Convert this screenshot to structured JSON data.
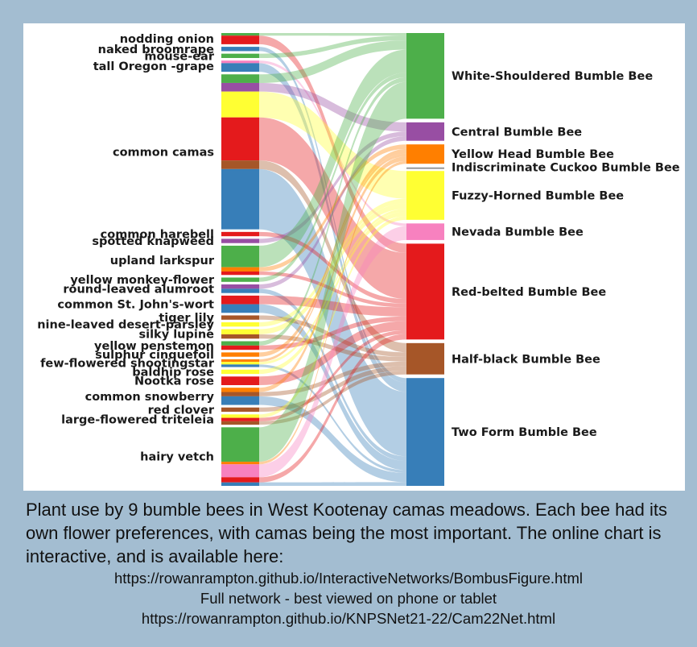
{
  "chart_data": {
    "type": "sankey",
    "title": "",
    "plants": [
      "nodding onion",
      "naked broomrape",
      "mouse-ear",
      "tall Oregon -grape",
      "common camas",
      "common harebell",
      "spotted knapweed",
      "upland larkspur",
      "yellow monkey-flower",
      "round-leaved alumroot",
      "common St. John's-wort",
      "tiger lily",
      "nine-leaved desert-parsley",
      "silky lupine",
      "yellow penstemon",
      "sulphur cinquefoil",
      "few-flowered shootingstar",
      "baldhip rose",
      "Nootka rose",
      "common snowberry",
      "red clover",
      "large-flowered triteleia",
      "hairy vetch"
    ],
    "bees": [
      {
        "name": "White-Shouldered Bumble Bee",
        "color": "#4daf4a"
      },
      {
        "name": "Central Bumble Bee",
        "color": "#984ea3"
      },
      {
        "name": "Yellow Head Bumble Bee",
        "color": "#ff7f00"
      },
      {
        "name": "Indiscriminate Cuckoo Bumble Bee",
        "color": "#999999"
      },
      {
        "name": "Fuzzy-Horned Bumble Bee",
        "color": "#ffff33"
      },
      {
        "name": "Nevada Bumble Bee",
        "color": "#f781bf"
      },
      {
        "name": "Red-belted Bumble Bee",
        "color": "#e41a1c"
      },
      {
        "name": "Half-black Bumble Bee",
        "color": "#a65628"
      },
      {
        "name": "Two Form Bumble Bee",
        "color": "#377eb8"
      }
    ],
    "links": [
      [
        "nodding onion",
        "Red-belted Bumble Bee",
        1
      ],
      [
        "nodding onion",
        "White-Shouldered Bumble Bee",
        0.3
      ],
      [
        "naked broomrape",
        "Two Form Bumble Bee",
        0.5
      ],
      [
        "mouse-ear",
        "White-Shouldered Bumble Bee",
        0.5
      ],
      [
        "tall Oregon -grape",
        "Two Form Bumble Bee",
        1
      ],
      [
        "tall Oregon -grape",
        "Nevada Bumble Bee",
        0.3
      ],
      [
        "common camas",
        "Central Bumble Bee",
        1
      ],
      [
        "common camas",
        "Fuzzy-Horned Bumble Bee",
        3
      ],
      [
        "common camas",
        "Red-belted Bumble Bee",
        5
      ],
      [
        "common camas",
        "Half-black Bumble Bee",
        1
      ],
      [
        "common camas",
        "Two Form Bumble Bee",
        7
      ],
      [
        "common camas",
        "White-Shouldered Bumble Bee",
        1
      ],
      [
        "common harebell",
        "Red-belted Bumble Bee",
        0.5
      ],
      [
        "spotted knapweed",
        "Central Bumble Bee",
        0.5
      ],
      [
        "upland larkspur",
        "White-Shouldered Bumble Bee",
        2.5
      ],
      [
        "upland larkspur",
        "Yellow Head Bumble Bee",
        0.5
      ],
      [
        "upland larkspur",
        "Red-belted Bumble Bee",
        0.4
      ],
      [
        "yellow monkey-flower",
        "White-Shouldered Bumble Bee",
        0.5
      ],
      [
        "round-leaved alumroot",
        "Central Bumble Bee",
        0.5
      ],
      [
        "round-leaved alumroot",
        "Two Form Bumble Bee",
        0.5
      ],
      [
        "common St. John's-wort",
        "Red-belted Bumble Bee",
        1
      ],
      [
        "common St. John's-wort",
        "Two Form Bumble Bee",
        1
      ],
      [
        "tiger lily",
        "Half-black Bumble Bee",
        0.5
      ],
      [
        "nine-leaved desert-parsley",
        "Fuzzy-Horned Bumble Bee",
        0.5
      ],
      [
        "silky lupine",
        "Fuzzy-Horned Bumble Bee",
        0.6
      ],
      [
        "silky lupine",
        "Half-black Bumble Bee",
        0.5
      ],
      [
        "yellow penstemon",
        "White-Shouldered Bumble Bee",
        0.5
      ],
      [
        "yellow penstemon",
        "Red-belted Bumble Bee",
        0.5
      ],
      [
        "sulphur cinquefoil",
        "Yellow Head Bumble Bee",
        0.5
      ],
      [
        "few-flowered shootingstar",
        "Yellow Head Bumble Bee",
        0.3
      ],
      [
        "few-flowered shootingstar",
        "Fuzzy-Horned Bumble Bee",
        0.3
      ],
      [
        "few-flowered shootingstar",
        "Two Form Bumble Bee",
        0.3
      ],
      [
        "baldhip rose",
        "Fuzzy-Horned Bumble Bee",
        0.5
      ],
      [
        "Nootka rose",
        "Red-belted Bumble Bee",
        1
      ],
      [
        "common snowberry",
        "Yellow Head Bumble Bee",
        0.5
      ],
      [
        "common snowberry",
        "Half-black Bumble Bee",
        0.5
      ],
      [
        "common snowberry",
        "Two Form Bumble Bee",
        1
      ],
      [
        "red clover",
        "Half-black Bumble Bee",
        0.5
      ],
      [
        "large-flowered triteleia",
        "Half-black Bumble Bee",
        0.4
      ],
      [
        "large-flowered triteleia",
        "Fuzzy-Horned Bumble Bee",
        0.4
      ],
      [
        "large-flowered triteleia",
        "Red-belted Bumble Bee",
        0.4
      ],
      [
        "hairy vetch",
        "White-Shouldered Bumble Bee",
        4
      ],
      [
        "hairy vetch",
        "Yellow Head Bumble Bee",
        0.3
      ],
      [
        "hairy vetch",
        "Nevada Bumble Bee",
        1.5
      ],
      [
        "hairy vetch",
        "Red-belted Bumble Bee",
        0.6
      ],
      [
        "hairy vetch",
        "Two Form Bumble Bee",
        0.4
      ]
    ]
  },
  "caption": {
    "text": "Plant use by 9 bumble bees in West Kootenay camas meadows. Each bee had its own flower preferences, with camas being the most important.  The online chart is interactive, and is available here:",
    "link1": "https://rowanrampton.github.io/InteractiveNetworks/BombusFigure.html",
    "network_note": "Full network - best viewed on phone or tablet",
    "link2": "https://rowanrampton.github.io/KNPSNet21-22/Cam22Net.html"
  }
}
